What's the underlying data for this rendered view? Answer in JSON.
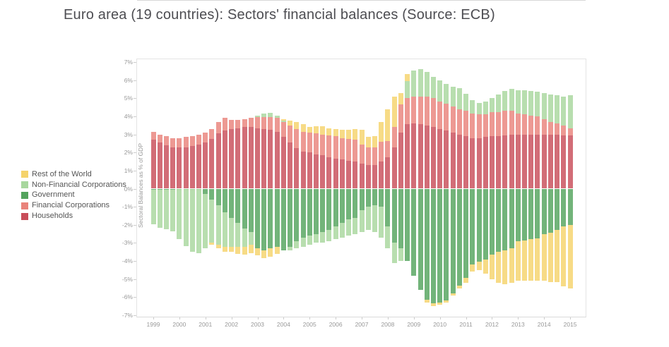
{
  "title": "Euro area (19 countries): Sectors' financial balances (Source: ECB)",
  "y_axis": {
    "label": "Sectoral Balances as % of GDP",
    "tick_labels": [
      "7%",
      "6%",
      "5%",
      "4%",
      "3%",
      "2%",
      "1%",
      "0%",
      "-1%",
      "-2%",
      "-3%",
      "-4%",
      "-5%",
      "-6%",
      "-7%"
    ],
    "min": -7,
    "max": 7
  },
  "x_axis": {
    "years": [
      "1999",
      "2000",
      "2001",
      "2002",
      "2003",
      "2004",
      "2005",
      "2006",
      "2007",
      "2008",
      "2009",
      "2010",
      "2011",
      "2012",
      "2013",
      "2014",
      "2015"
    ]
  },
  "legend": {
    "items": [
      "Rest of the World",
      "Non-Financial Corporations",
      "Government",
      "Financial Corporations",
      "Households"
    ]
  },
  "chart_data": {
    "type": "bar",
    "stacked": true,
    "title": "Euro area (19 countries): Sectors' financial balances (Source: ECB)",
    "ylabel": "Sectoral Balances as % of GDP",
    "ylim": [
      -7,
      7
    ],
    "grid": false,
    "legend_position": "left",
    "x": [
      "1999Q1",
      "1999Q2",
      "1999Q3",
      "1999Q4",
      "2000Q1",
      "2000Q2",
      "2000Q3",
      "2000Q4",
      "2001Q1",
      "2001Q2",
      "2001Q3",
      "2001Q4",
      "2002Q1",
      "2002Q2",
      "2002Q3",
      "2002Q4",
      "2003Q1",
      "2003Q2",
      "2003Q3",
      "2003Q4",
      "2004Q1",
      "2004Q2",
      "2004Q3",
      "2004Q4",
      "2005Q1",
      "2005Q2",
      "2005Q3",
      "2005Q4",
      "2006Q1",
      "2006Q2",
      "2006Q3",
      "2006Q4",
      "2007Q1",
      "2007Q2",
      "2007Q3",
      "2007Q4",
      "2008Q1",
      "2008Q2",
      "2008Q3",
      "2008Q4",
      "2009Q1",
      "2009Q2",
      "2009Q3",
      "2009Q4",
      "2010Q1",
      "2010Q2",
      "2010Q3",
      "2010Q4",
      "2011Q1",
      "2011Q2",
      "2011Q3",
      "2011Q4",
      "2012Q1",
      "2012Q2",
      "2012Q3",
      "2012Q4",
      "2013Q1",
      "2013Q2",
      "2013Q3",
      "2013Q4",
      "2014Q1",
      "2014Q2",
      "2014Q3",
      "2014Q4",
      "2015Q1"
    ],
    "stack_order": [
      "Households",
      "Financial Corporations",
      "Government",
      "Non-Financial Corporations",
      "Rest of the World"
    ],
    "series": [
      {
        "name": "Rest of the World",
        "color": "#F5D36B",
        "values": [
          0,
          0,
          0,
          0,
          0,
          0,
          0,
          0,
          0,
          -0.1,
          -0.2,
          -0.3,
          -0.3,
          -0.4,
          -0.45,
          -0.45,
          -0.4,
          -0.45,
          -0.45,
          -0.4,
          0.1,
          0.25,
          0.4,
          0.4,
          0.3,
          0.4,
          0.45,
          0.4,
          0.4,
          0.45,
          0.5,
          0.6,
          0.8,
          0.55,
          0.6,
          1.1,
          1.75,
          1.7,
          0.65,
          0.4,
          0,
          0,
          -0.15,
          -0.15,
          -0.1,
          -0.1,
          -0.1,
          -0.15,
          -0.25,
          -0.4,
          -0.45,
          -0.8,
          -1.35,
          -1.7,
          -1.9,
          -1.9,
          -2.2,
          -2.25,
          -2.3,
          -2.35,
          -2.6,
          -2.7,
          -2.85,
          -3.3,
          -3.5
        ]
      },
      {
        "name": "Non-Financial Corporations",
        "color": "#A8D79E",
        "values": [
          -1.9,
          -2.1,
          -2.2,
          -2.3,
          -2.75,
          -3.15,
          -3.45,
          -3.55,
          -3.0,
          -2.4,
          -2.2,
          -1.9,
          -1.6,
          -1.3,
          -1.0,
          -0.7,
          0.1,
          0.2,
          0.25,
          0.15,
          0.05,
          -0.2,
          -0.4,
          -0.5,
          -0.5,
          -0.5,
          -0.6,
          -0.6,
          -0.7,
          -0.8,
          -0.9,
          -0.9,
          -1.2,
          -1.3,
          -1.5,
          -1.7,
          -1.2,
          -1.1,
          -0.7,
          0.95,
          1.45,
          1.5,
          1.35,
          1.2,
          1.2,
          1.1,
          1.1,
          1.15,
          0.95,
          0.75,
          0.65,
          0.7,
          0.75,
          0.95,
          1.1,
          1.2,
          1.3,
          1.35,
          1.35,
          1.35,
          1.45,
          1.5,
          1.55,
          1.6,
          1.8
        ]
      },
      {
        "name": "Government",
        "color": "#53A35D",
        "values": [
          -0.05,
          -0.05,
          -0.05,
          -0.05,
          -0.03,
          -0.03,
          -0.03,
          -0.03,
          -0.3,
          -0.6,
          -0.9,
          -1.3,
          -1.6,
          -1.9,
          -2.2,
          -2.4,
          -3.3,
          -3.4,
          -3.3,
          -3.2,
          -3.4,
          -3.2,
          -2.9,
          -2.7,
          -2.6,
          -2.5,
          -2.4,
          -2.3,
          -2.1,
          -1.9,
          -1.7,
          -1.6,
          -1.2,
          -1.0,
          -0.9,
          -1.0,
          -2.1,
          -3.0,
          -3.3,
          -4.0,
          -4.8,
          -5.6,
          -6.15,
          -6.35,
          -6.3,
          -6.2,
          -5.8,
          -5.35,
          -4.95,
          -4.2,
          -4.05,
          -3.9,
          -3.65,
          -3.5,
          -3.4,
          -3.3,
          -2.9,
          -2.85,
          -2.8,
          -2.75,
          -2.5,
          -2.45,
          -2.3,
          -2.1,
          -2.0
        ]
      },
      {
        "name": "Financial Corporations",
        "color": "#E9837B",
        "values": [
          0.45,
          0.45,
          0.5,
          0.5,
          0.5,
          0.55,
          0.55,
          0.55,
          0.55,
          0.55,
          0.65,
          0.7,
          0.5,
          0.45,
          0.45,
          0.5,
          0.6,
          0.65,
          0.7,
          0.75,
          0.85,
          0.95,
          1.05,
          1.1,
          1.1,
          1.15,
          1.15,
          1.2,
          1.25,
          1.2,
          1.2,
          1.2,
          1.05,
          1.0,
          1.0,
          1.1,
          0.9,
          1.1,
          1.55,
          1.45,
          1.5,
          1.55,
          1.6,
          1.6,
          1.5,
          1.5,
          1.45,
          1.4,
          1.4,
          1.35,
          1.3,
          1.25,
          1.35,
          1.35,
          1.35,
          1.3,
          1.15,
          1.1,
          1.05,
          1.0,
          0.85,
          0.7,
          0.6,
          0.55,
          0.4
        ]
      },
      {
        "name": "Households",
        "color": "#C84D59",
        "values": [
          2.7,
          2.55,
          2.4,
          2.3,
          2.3,
          2.3,
          2.35,
          2.45,
          2.55,
          2.75,
          3.05,
          3.2,
          3.3,
          3.35,
          3.4,
          3.4,
          3.35,
          3.3,
          3.25,
          3.15,
          2.85,
          2.55,
          2.25,
          2.05,
          2.0,
          1.9,
          1.85,
          1.75,
          1.65,
          1.6,
          1.55,
          1.5,
          1.4,
          1.3,
          1.3,
          1.5,
          1.75,
          2.3,
          3.1,
          3.55,
          3.6,
          3.55,
          3.5,
          3.4,
          3.3,
          3.2,
          3.1,
          3.0,
          2.9,
          2.8,
          2.8,
          2.85,
          2.9,
          2.9,
          2.95,
          3.0,
          3.0,
          3.0,
          3.0,
          3.0,
          3.0,
          3.0,
          3.0,
          2.95,
          2.95
        ]
      }
    ]
  }
}
